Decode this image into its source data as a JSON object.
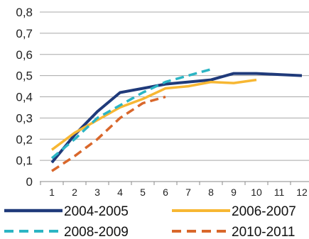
{
  "chart_data": {
    "type": "line",
    "x": [
      1,
      2,
      3,
      4,
      5,
      6,
      7,
      8,
      9,
      10,
      11,
      12
    ],
    "x_tick_labels": [
      "1",
      "2",
      "3",
      "4",
      "5",
      "6",
      "7",
      "8",
      "9",
      "10",
      "11",
      "12"
    ],
    "y_tick_labels": [
      "0",
      "0,1",
      "0,2",
      "0,3",
      "0,4",
      "0,5",
      "0,6",
      "0,7",
      "0,8"
    ],
    "ylim": [
      0,
      0.8
    ],
    "grid": {
      "horizontal": true,
      "vertical": false
    },
    "legend_position": "bottom",
    "series": [
      {
        "name": "2004-2005",
        "color": "#1f3a7a",
        "style": "solid",
        "values": [
          0.09,
          0.22,
          0.33,
          0.42,
          0.44,
          0.46,
          0.47,
          0.48,
          0.51,
          0.51,
          0.505,
          0.5
        ]
      },
      {
        "name": "2006-2007",
        "color": "#f7b733",
        "style": "solid",
        "values": [
          0.15,
          0.23,
          0.29,
          0.35,
          0.39,
          0.44,
          0.45,
          0.47,
          0.465,
          0.48,
          null,
          null
        ]
      },
      {
        "name": "2008-2009",
        "color": "#2bb5c4",
        "style": "dashed",
        "values": [
          0.11,
          0.2,
          0.3,
          0.36,
          0.42,
          0.47,
          0.5,
          0.53,
          null,
          null,
          null,
          null
        ]
      },
      {
        "name": "2010-2011",
        "color": "#d9672b",
        "style": "dashed",
        "values": [
          0.05,
          0.12,
          0.2,
          0.3,
          0.37,
          0.4,
          null,
          null,
          null,
          null,
          null,
          null
        ]
      }
    ]
  }
}
